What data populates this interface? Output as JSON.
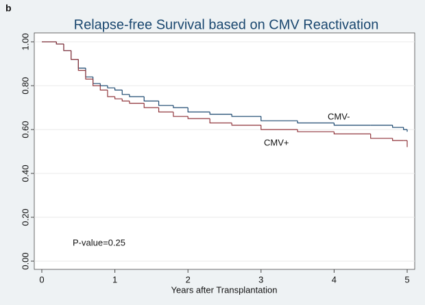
{
  "chart_data": {
    "type": "step",
    "panel_label": "b",
    "title": "Relapse-free Survival based on CMV Reactivation",
    "x_label": "Years after Transplantation",
    "annotation": "P-value=0.25",
    "x": [
      0,
      0.1,
      0.2,
      0.3,
      0.4,
      0.5,
      0.6,
      0.7,
      0.8,
      0.9,
      1.0,
      1.1,
      1.2,
      1.4,
      1.6,
      1.8,
      2.0,
      2.3,
      2.6,
      3.0,
      3.5,
      4.0,
      4.5,
      4.8,
      4.95,
      5.0
    ],
    "series": [
      {
        "name": "CMV-",
        "color": "#1a476f",
        "values": [
          1,
          1,
          0.99,
          0.96,
          0.92,
          0.88,
          0.84,
          0.81,
          0.8,
          0.79,
          0.78,
          0.76,
          0.75,
          0.73,
          0.71,
          0.7,
          0.68,
          0.67,
          0.66,
          0.64,
          0.63,
          0.62,
          0.62,
          0.61,
          0.6,
          0.59
        ]
      },
      {
        "name": "CMV+",
        "color": "#90353b",
        "values": [
          1,
          1,
          0.99,
          0.96,
          0.92,
          0.87,
          0.83,
          0.8,
          0.78,
          0.75,
          0.74,
          0.73,
          0.72,
          0.7,
          0.68,
          0.66,
          0.65,
          0.63,
          0.62,
          0.6,
          0.59,
          0.58,
          0.56,
          0.55,
          0.55,
          0.52
        ]
      }
    ],
    "xlim": [
      0,
      5
    ],
    "xticks": [
      0,
      1,
      2,
      3,
      4,
      5
    ],
    "ylim": [
      0,
      1
    ],
    "yticks": [
      {
        "value": 0,
        "label": "0.00"
      },
      {
        "value": 0.2,
        "label": "0.20"
      },
      {
        "value": 0.4,
        "label": "0.40"
      },
      {
        "value": 0.6,
        "label": "0.60"
      },
      {
        "value": 0.8,
        "label": "0.80"
      },
      {
        "value": 1,
        "label": "1.00"
      }
    ],
    "grid": true
  }
}
